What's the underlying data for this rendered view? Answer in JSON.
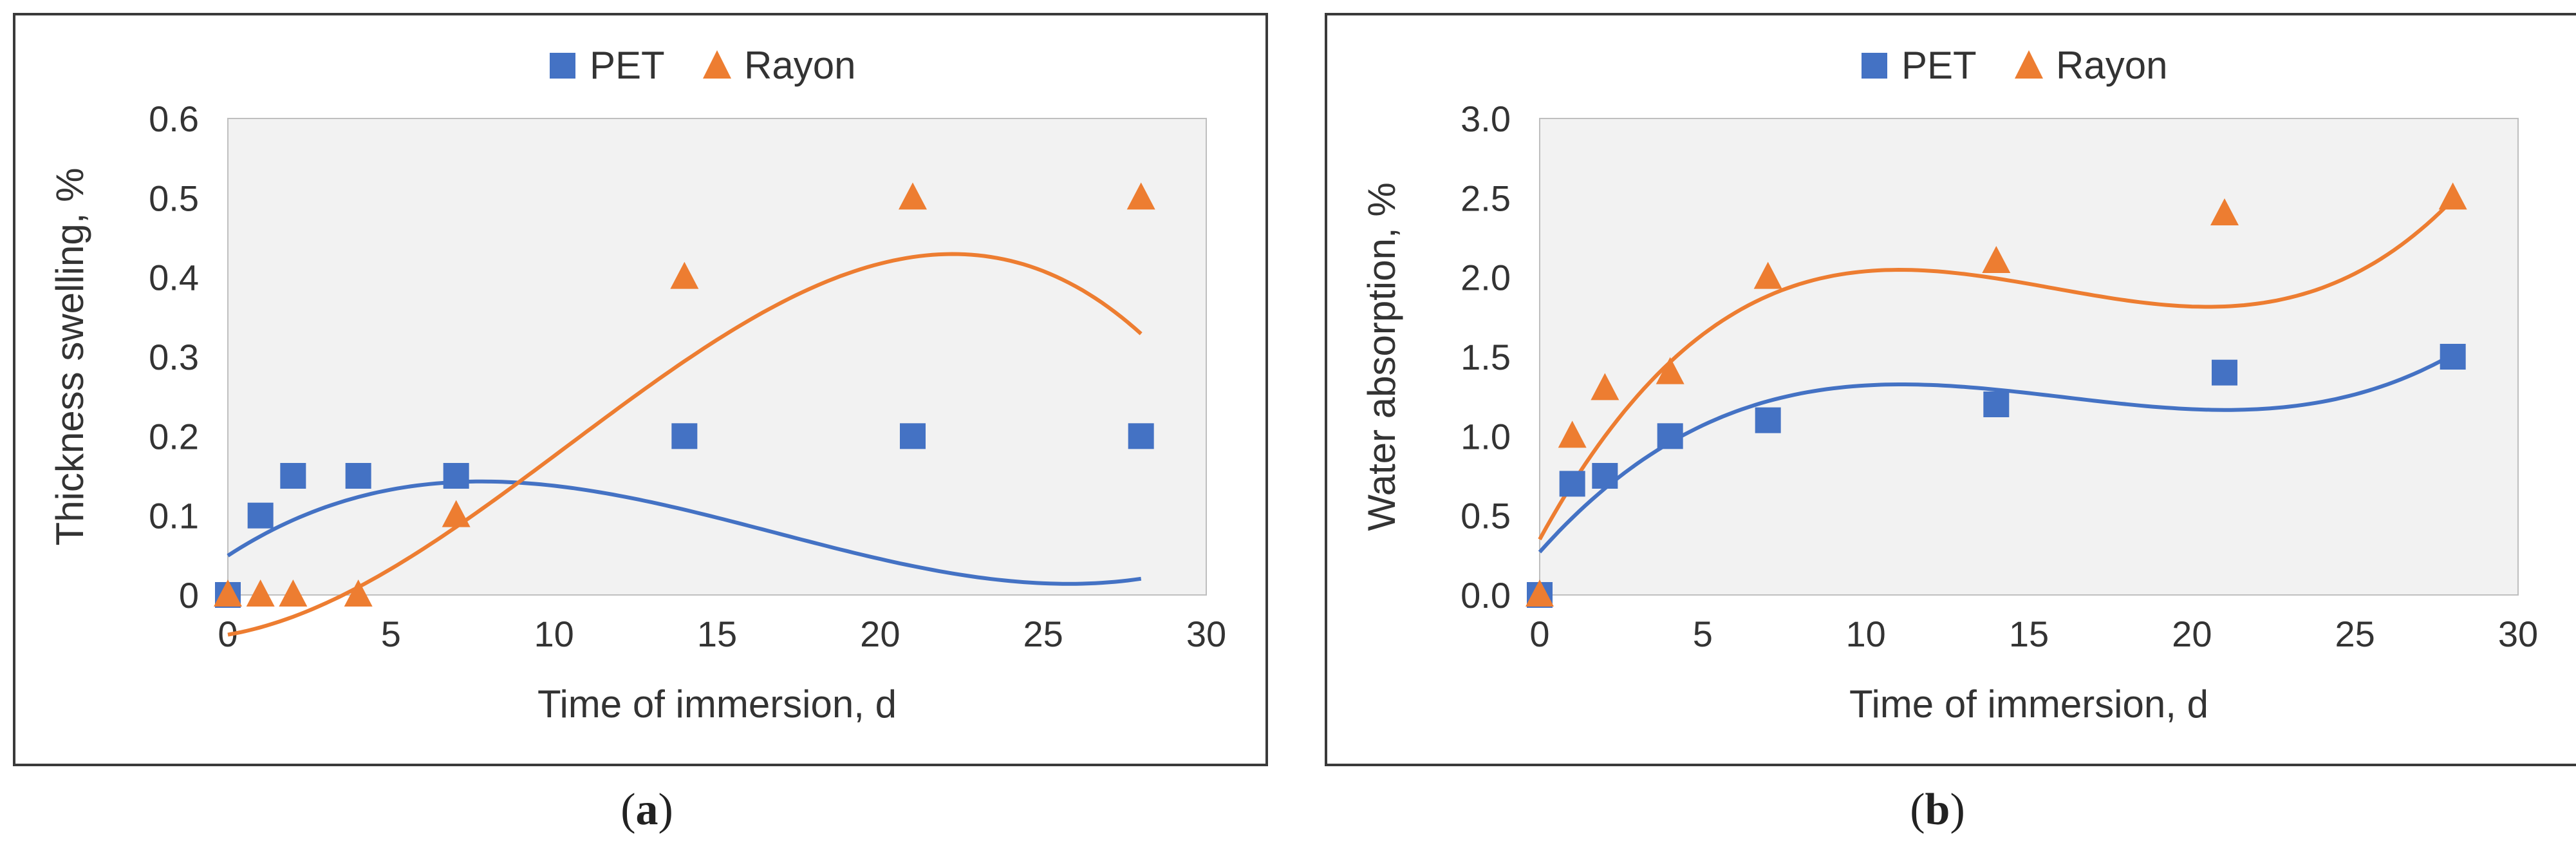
{
  "chart_data": [
    {
      "type": "scatter",
      "title": "",
      "xlabel": "Time of immersion, d",
      "ylabel": "Thickness swelling, %",
      "xlim": [
        0,
        30
      ],
      "ylim": [
        0,
        0.6
      ],
      "xticks": [
        0,
        5,
        10,
        15,
        20,
        25,
        30
      ],
      "yticks": [
        0,
        0.1,
        0.2,
        0.3,
        0.4,
        0.5,
        0.6
      ],
      "ytick_labels": [
        "0",
        "0.1",
        "0.2",
        "0.3",
        "0.4",
        "0.5",
        "0.6"
      ],
      "xtick_labels": [
        "0",
        "5",
        "10",
        "15",
        "20",
        "25",
        "30"
      ],
      "legend": "top-center",
      "caption": "(a)",
      "caption_letter": "a",
      "series": [
        {
          "name": "PET",
          "marker": "square",
          "color": "#4472C4",
          "x": [
            0,
            1,
            2,
            4,
            7,
            14,
            21,
            28
          ],
          "y": [
            0,
            0.1,
            0.15,
            0.15,
            0.15,
            0.2,
            0.2,
            0.2
          ],
          "trend": [
            0.0495,
            0.02667,
            -0.00223,
            4.43e-05
          ]
        },
        {
          "name": "Rayon",
          "marker": "triangle",
          "color": "#ED7D31",
          "x": [
            0,
            1,
            2,
            4,
            7,
            14,
            21,
            28
          ],
          "y": [
            0,
            0,
            0,
            0,
            0.1,
            0.4,
            0.5,
            0.5
          ],
          "trend": [
            -0.05,
            0.007,
            0.00228,
            -7.31e-05
          ]
        }
      ]
    },
    {
      "type": "scatter",
      "title": "",
      "xlabel": "Time of immersion, d",
      "ylabel": "Water absorption, %",
      "xlim": [
        0,
        30
      ],
      "ylim": [
        0,
        3
      ],
      "xticks": [
        0,
        5,
        10,
        15,
        20,
        25,
        30
      ],
      "yticks": [
        0,
        0.5,
        1,
        1.5,
        2,
        2.5,
        3
      ],
      "ytick_labels": [
        "0.0",
        "0.5",
        "1.0",
        "1.5",
        "2.0",
        "2.5",
        "3.0"
      ],
      "xtick_labels": [
        "0",
        "5",
        "10",
        "15",
        "20",
        "25",
        "30"
      ],
      "legend": "top-center",
      "caption": "(b)",
      "caption_letter": "b",
      "series": [
        {
          "name": "PET",
          "marker": "square",
          "color": "#4472C4",
          "x": [
            0,
            1,
            2,
            4,
            7,
            14,
            21,
            28
          ],
          "y": [
            0,
            0.7,
            0.75,
            1.0,
            1.1,
            1.2,
            1.4,
            1.5
          ],
          "trend": [
            0.27,
            0.2307,
            -0.01587,
            0.0003292
          ]
        },
        {
          "name": "Rayon",
          "marker": "triangle",
          "color": "#ED7D31",
          "x": [
            0,
            1,
            2,
            4,
            7,
            14,
            21,
            28
          ],
          "y": [
            0,
            1.0,
            1.3,
            1.4,
            2.0,
            2.1,
            2.4,
            2.5
          ],
          "trend": [
            0.35,
            0.3747,
            -0.02611,
            0.000552
          ]
        }
      ]
    }
  ]
}
